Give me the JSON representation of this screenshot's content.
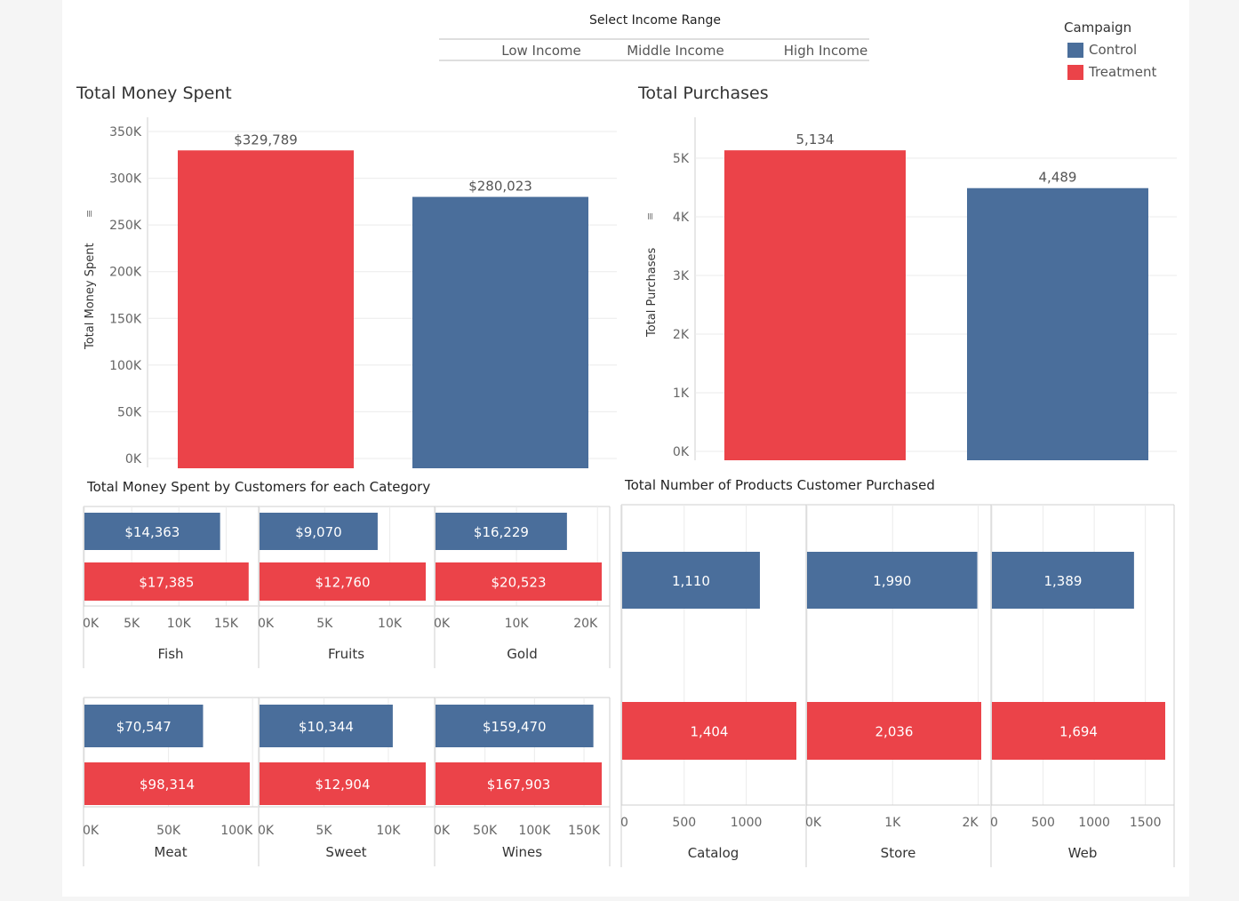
{
  "filter": {
    "title": "Select Income Range",
    "options": [
      "Low Income",
      "Middle Income",
      "High Income"
    ]
  },
  "legend": {
    "title": "Campaign",
    "items": [
      {
        "label": "Control",
        "color": "#4a6e9b"
      },
      {
        "label": "Treatment",
        "color": "#eb4349"
      }
    ]
  },
  "colors": {
    "control": "#4a6e9b",
    "treatment": "#eb4349"
  },
  "chart_data": [
    {
      "id": "money",
      "type": "bar",
      "title": "Total Money Spent",
      "ylabel": "Total Money Spent",
      "categories": [
        "Treatment",
        "Control"
      ],
      "values": [
        329789,
        280023
      ],
      "value_labels": [
        "$329,789",
        "$280,023"
      ],
      "ylim": [
        0,
        350000
      ],
      "ticks": [
        0,
        50000,
        100000,
        150000,
        200000,
        250000,
        300000,
        350000
      ],
      "tick_labels": [
        "0K",
        "50K",
        "100K",
        "150K",
        "200K",
        "250K",
        "300K",
        "350K"
      ],
      "grid": true
    },
    {
      "id": "purchases",
      "type": "bar",
      "title": "Total Purchases",
      "ylabel": "Total Purchases",
      "categories": [
        "Treatment",
        "Control"
      ],
      "values": [
        5134,
        4489
      ],
      "value_labels": [
        "5,134",
        "4,489"
      ],
      "ylim": [
        0,
        5000
      ],
      "ticks": [
        0,
        1000,
        2000,
        3000,
        4000,
        5000
      ],
      "tick_labels": [
        "0K",
        "1K",
        "2K",
        "3K",
        "4K",
        "5K"
      ],
      "grid": true
    },
    {
      "id": "categories",
      "type": "bar",
      "orientation": "horizontal",
      "title": "Total Money Spent by Customers for each Category",
      "panels": [
        {
          "name": "Fish",
          "control": 14363,
          "treatment": 17385,
          "control_label": "$14,363",
          "treatment_label": "$17,385",
          "xlim": [
            0,
            17500
          ],
          "ticks": [
            0,
            5000,
            10000,
            15000
          ],
          "tick_labels": [
            "0K",
            "5K",
            "10K",
            "15K"
          ]
        },
        {
          "name": "Fruits",
          "control": 9070,
          "treatment": 12760,
          "control_label": "$9,070",
          "treatment_label": "$12,760",
          "xlim": [
            0,
            12760
          ],
          "ticks": [
            0,
            5000,
            10000
          ],
          "tick_labels": [
            "0K",
            "5K",
            "10K"
          ]
        },
        {
          "name": "Gold",
          "control": 16229,
          "treatment": 20523,
          "control_label": "$16,229",
          "treatment_label": "$20,523",
          "xlim": [
            0,
            20523
          ],
          "ticks": [
            0,
            10000,
            20000
          ],
          "tick_labels": [
            "0K",
            "10K",
            "20K"
          ]
        },
        {
          "name": "Meat",
          "control": 70547,
          "treatment": 98314,
          "control_label": "$70,547",
          "treatment_label": "$98,314",
          "xlim": [
            0,
            98314
          ],
          "ticks": [
            0,
            50000,
            100000
          ],
          "tick_labels": [
            "0K",
            "50K",
            "100K"
          ]
        },
        {
          "name": "Sweet",
          "control": 10344,
          "treatment": 12904,
          "control_label": "$10,344",
          "treatment_label": "$12,904",
          "xlim": [
            0,
            12904
          ],
          "ticks": [
            0,
            5000,
            10000
          ],
          "tick_labels": [
            "0K",
            "5K",
            "10K"
          ]
        },
        {
          "name": "Wines",
          "control": 159470,
          "treatment": 167903,
          "control_label": "$159,470",
          "treatment_label": "$167,903",
          "xlim": [
            0,
            167903
          ],
          "ticks": [
            0,
            50000,
            100000,
            150000
          ],
          "tick_labels": [
            "0K",
            "50K",
            "100K",
            "150K"
          ]
        }
      ]
    },
    {
      "id": "channels",
      "type": "bar",
      "orientation": "horizontal",
      "title": "Total Number of Products Customer Purchased",
      "panels": [
        {
          "name": "Catalog",
          "control": 1110,
          "treatment": 1404,
          "control_label": "1,110",
          "treatment_label": "1,404",
          "xlim": [
            0,
            1404
          ],
          "ticks": [
            0,
            500,
            1000
          ],
          "tick_labels": [
            "0",
            "500",
            "1000"
          ]
        },
        {
          "name": "Store",
          "control": 1990,
          "treatment": 2036,
          "control_label": "1,990",
          "treatment_label": "2,036",
          "xlim": [
            0,
            2036
          ],
          "ticks": [
            0,
            1000,
            2000
          ],
          "tick_labels": [
            "0K",
            "1K",
            "2K"
          ]
        },
        {
          "name": "Web",
          "control": 1389,
          "treatment": 1694,
          "control_label": "1,389",
          "treatment_label": "1,694",
          "xlim": [
            0,
            1694
          ],
          "ticks": [
            0,
            500,
            1000,
            1500
          ],
          "tick_labels": [
            "0",
            "500",
            "1000",
            "1500"
          ]
        }
      ]
    }
  ]
}
